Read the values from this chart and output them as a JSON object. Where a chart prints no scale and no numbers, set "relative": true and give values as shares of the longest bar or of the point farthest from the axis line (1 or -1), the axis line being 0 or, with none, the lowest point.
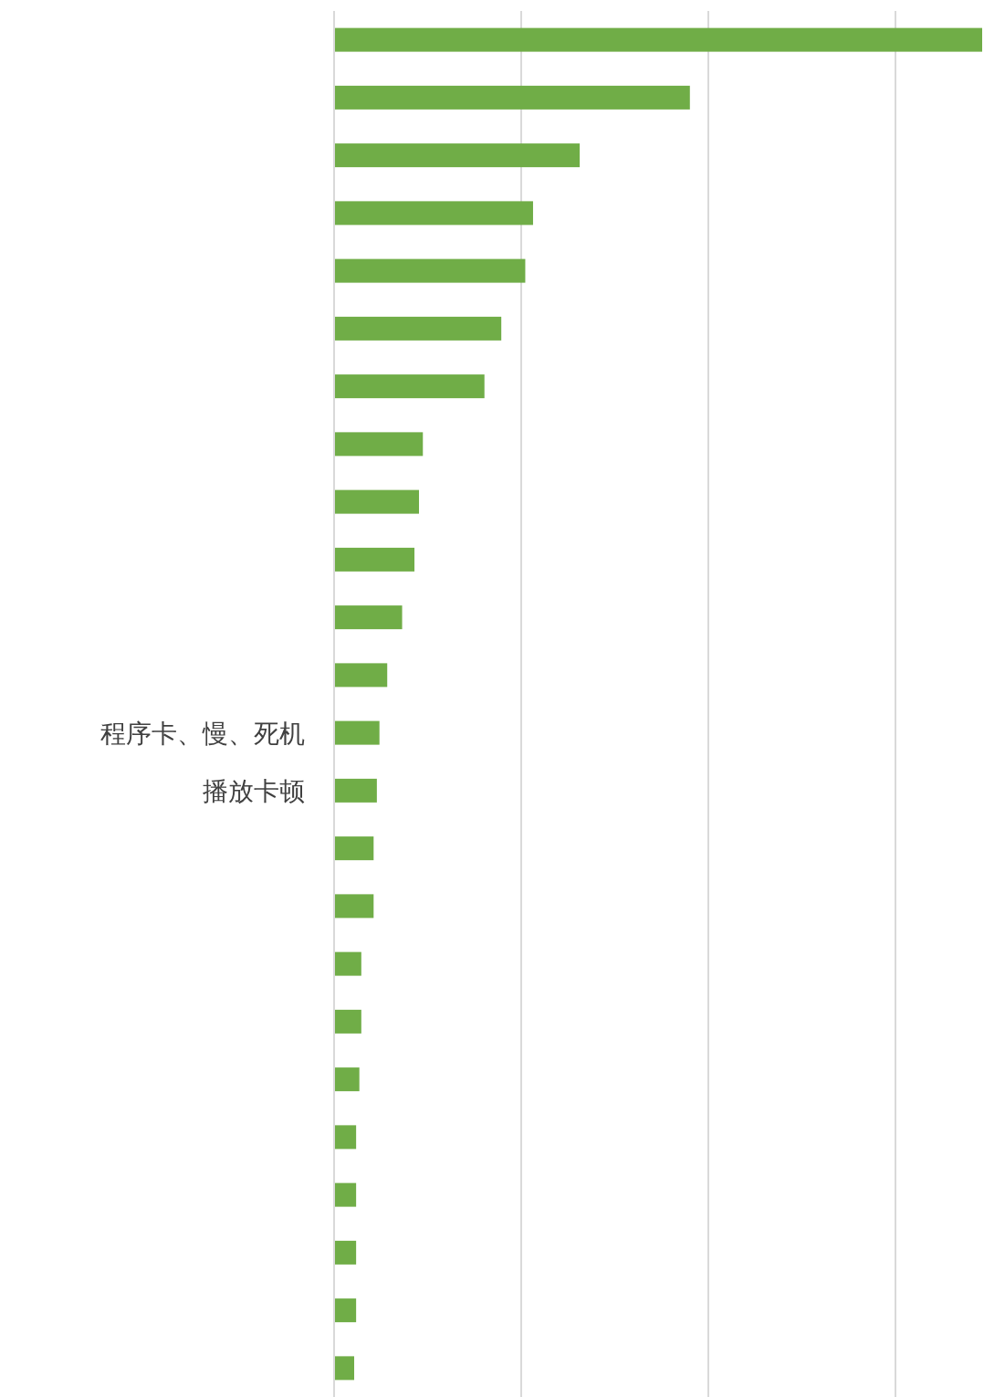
{
  "chart_data": {
    "type": "bar",
    "orientation": "horizontal",
    "relative": true,
    "grid": "x",
    "color": "#70ad47",
    "categories": [
      null,
      null,
      null,
      null,
      null,
      null,
      null,
      null,
      null,
      null,
      null,
      null,
      "程序卡、慢、死机",
      "播放卡顿",
      null,
      null,
      null,
      null,
      null,
      null,
      null,
      null,
      null,
      null
    ],
    "values": [
      1,
      0.549,
      0.379,
      0.307,
      0.295,
      0.258,
      0.232,
      0.137,
      0.131,
      0.124,
      0.105,
      0.082,
      0.07,
      0.066,
      0.061,
      0.061,
      0.042,
      0.042,
      0.039,
      0.034,
      0.034,
      0.034,
      0.034,
      0.031
    ]
  }
}
